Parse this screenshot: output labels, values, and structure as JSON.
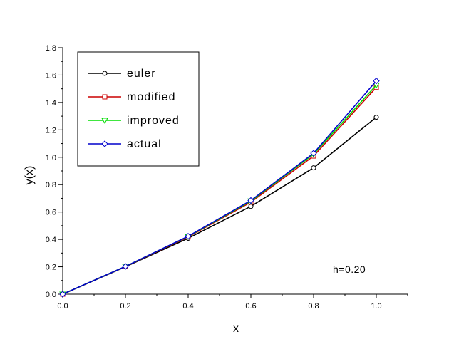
{
  "chart_data": {
    "type": "line",
    "xlabel": "x",
    "ylabel": "y(x)",
    "xlim": [
      0.0,
      1.1
    ],
    "ylim": [
      0.0,
      1.8
    ],
    "xticks": [
      "0.0",
      "0.2",
      "0.4",
      "0.6",
      "0.8",
      "1.0"
    ],
    "yticks": [
      "0.0",
      "0.2",
      "0.4",
      "0.6",
      "0.8",
      "1.0",
      "1.2",
      "1.4",
      "1.6",
      "1.8"
    ],
    "legend_position": "top-left",
    "annotation": "h=0.20",
    "x": [
      0.0,
      0.2,
      0.4,
      0.6,
      0.8,
      1.0
    ],
    "series": [
      {
        "name": "euler",
        "values": [
          0.0,
          0.2,
          0.408,
          0.6413,
          0.9229,
          1.2922
        ],
        "color": "#000000",
        "marker": "circle"
      },
      {
        "name": "modified",
        "values": [
          0.0,
          0.202,
          0.418,
          0.672,
          1.009,
          1.51
        ],
        "color": "#cc0000",
        "marker": "square"
      },
      {
        "name": "improved",
        "values": [
          0.0,
          0.2027,
          0.4215,
          0.6799,
          1.0228,
          1.5268
        ],
        "color": "#00dd00",
        "marker": "triangle-down"
      },
      {
        "name": "actual",
        "values": [
          0.0,
          0.2027,
          0.4228,
          0.6841,
          1.0296,
          1.5574
        ],
        "color": "#0000cc",
        "marker": "diamond"
      }
    ]
  }
}
